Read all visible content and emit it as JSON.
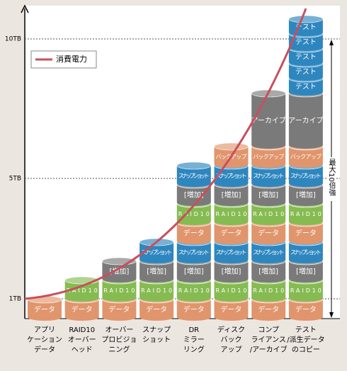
{
  "y_axis": {
    "labels": [
      "10TB",
      "5TB",
      "1TB"
    ]
  },
  "legend": {
    "label": "消費電力",
    "color": "#c94f5c"
  },
  "annotation": "最大10倍強",
  "columns": [
    {
      "label": [
        "アプリ",
        "ケーション",
        "データ"
      ],
      "segments": [
        {
          "label": "データ",
          "color": "#e0956c"
        }
      ]
    },
    {
      "label": [
        "RAID10",
        "オーバー",
        "ヘッド"
      ],
      "segments": [
        {
          "label": "データ",
          "color": "#e0956c"
        },
        {
          "label": "RAID10",
          "color": "#86bb52"
        }
      ]
    },
    {
      "label": [
        "オーバー",
        "プロビジョ",
        "ニング"
      ],
      "segments": [
        {
          "label": "データ",
          "color": "#e0956c"
        },
        {
          "label": "RAID10",
          "color": "#86bb52"
        },
        {
          "label": "[増加]",
          "color": "#7a7a7a"
        }
      ]
    },
    {
      "label": [
        "スナップ",
        "ショット"
      ],
      "segments": [
        {
          "label": "データ",
          "color": "#e0956c"
        },
        {
          "label": "RAID10",
          "color": "#86bb52"
        },
        {
          "label": "[増加]",
          "color": "#7a7a7a"
        },
        {
          "label": "スナップショット",
          "color": "#2e86bf"
        }
      ]
    },
    {
      "label": [
        "DR",
        "ミラー",
        "リング"
      ],
      "segments": [
        {
          "label": "データ",
          "color": "#e0956c"
        },
        {
          "label": "RAID10",
          "color": "#86bb52"
        },
        {
          "label": "[増加]",
          "color": "#7a7a7a"
        },
        {
          "label": "スナップショット",
          "color": "#2e86bf"
        },
        {
          "label": "データ",
          "color": "#e0956c"
        },
        {
          "label": "RAID10",
          "color": "#86bb52"
        },
        {
          "label": "[増加]",
          "color": "#7a7a7a"
        },
        {
          "label": "スナップショット",
          "color": "#2e86bf"
        }
      ]
    },
    {
      "label": [
        "ディスク",
        "バック",
        "アップ"
      ],
      "segments": [
        {
          "label": "データ",
          "color": "#e0956c"
        },
        {
          "label": "RAID10",
          "color": "#86bb52"
        },
        {
          "label": "[増加]",
          "color": "#7a7a7a"
        },
        {
          "label": "スナップショット",
          "color": "#2e86bf"
        },
        {
          "label": "データ",
          "color": "#e0956c"
        },
        {
          "label": "RAID10",
          "color": "#86bb52"
        },
        {
          "label": "[増加]",
          "color": "#7a7a7a"
        },
        {
          "label": "スナップショット",
          "color": "#2e86bf"
        },
        {
          "label": "バックアップ",
          "color": "#e0956c"
        }
      ]
    },
    {
      "label": [
        "コンプ",
        "ライアンス",
        "/アーカイブ"
      ],
      "segments": [
        {
          "label": "データ",
          "color": "#e0956c"
        },
        {
          "label": "RAID10",
          "color": "#86bb52"
        },
        {
          "label": "[増加]",
          "color": "#7a7a7a"
        },
        {
          "label": "スナップショット",
          "color": "#2e86bf"
        },
        {
          "label": "データ",
          "color": "#e0956c"
        },
        {
          "label": "RAID10",
          "color": "#86bb52"
        },
        {
          "label": "[増加]",
          "color": "#7a7a7a"
        },
        {
          "label": "スナップショット",
          "color": "#2e86bf"
        },
        {
          "label": "バックアップ",
          "color": "#e0956c"
        },
        {
          "label": "アーカイブ",
          "color": "#7a7a7a"
        }
      ]
    },
    {
      "label": [
        "テスト",
        "/派生データ",
        "のコピー"
      ],
      "segments": [
        {
          "label": "データ",
          "color": "#e0956c"
        },
        {
          "label": "RAID10",
          "color": "#86bb52"
        },
        {
          "label": "[増加]",
          "color": "#7a7a7a"
        },
        {
          "label": "スナップショット",
          "color": "#2e86bf"
        },
        {
          "label": "データ",
          "color": "#e0956c"
        },
        {
          "label": "RAID10",
          "color": "#86bb52"
        },
        {
          "label": "[増加]",
          "color": "#7a7a7a"
        },
        {
          "label": "スナップショット",
          "color": "#2e86bf"
        },
        {
          "label": "バックアップ",
          "color": "#e0956c"
        },
        {
          "label": "アーカイブ",
          "color": "#7a7a7a"
        },
        {
          "label": "テスト",
          "color": "#2e86bf"
        },
        {
          "label": "テスト",
          "color": "#2e86bf"
        },
        {
          "label": "テスト",
          "color": "#2e86bf"
        },
        {
          "label": "テスト",
          "color": "#2e86bf"
        },
        {
          "label": "テスト",
          "color": "#2e86bf"
        }
      ]
    }
  ]
}
